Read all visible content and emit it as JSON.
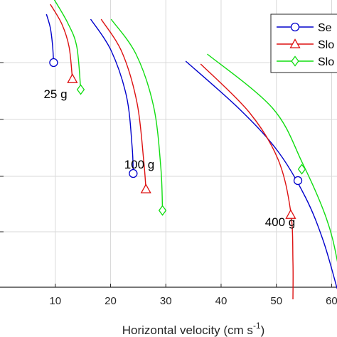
{
  "chart_data": {
    "type": "line",
    "xlabel": "Horizontal velocity (cm s",
    "xlabel_superscript": "-1",
    "xlabel_close": ")",
    "xlim": [
      0,
      62
    ],
    "x_ticks": [
      10,
      20,
      30,
      40,
      50,
      60
    ],
    "x_tick_labels": [
      "10",
      "20",
      "30",
      "40",
      "50",
      "60"
    ],
    "grid": true,
    "legend_position": "top-right",
    "series": [
      {
        "name": "Se",
        "color": "#0000cc",
        "marker": "circle"
      },
      {
        "name": "Slo",
        "color": "#dd1111",
        "marker": "triangle"
      },
      {
        "name": "Slo",
        "color": "#11dd11",
        "marker": "diamond"
      }
    ],
    "groups": [
      {
        "label": "25 g",
        "curves": [
          {
            "series": 0,
            "points": [
              [
                8.4,
                0.14
              ],
              [
                9.1,
                0.33
              ],
              [
                9.5,
                0.57
              ],
              [
                9.7,
                0.82
              ]
            ],
            "marker": [
              9.7,
              0.82
            ]
          },
          {
            "series": 1,
            "points": [
              [
                9.1,
                0.0
              ],
              [
                11.2,
                0.28
              ],
              [
                12.5,
                0.6
              ],
              [
                13.1,
                1.05
              ]
            ],
            "marker": [
              13.1,
              1.05
            ]
          },
          {
            "series": 2,
            "points": [
              [
                9.7,
                -0.08
              ],
              [
                12.3,
                0.27
              ],
              [
                13.9,
                0.6
              ],
              [
                14.6,
                1.2
              ]
            ],
            "marker": [
              14.6,
              1.2
            ]
          }
        ]
      },
      {
        "label": "100 g",
        "curves": [
          {
            "series": 0,
            "points": [
              [
                16.4,
                0.21
              ],
              [
                20.1,
                0.65
              ],
              [
                22.9,
                1.3
              ],
              [
                23.9,
                2.0
              ],
              [
                24.1,
                2.38
              ]
            ],
            "marker": [
              24.1,
              2.38
            ]
          },
          {
            "series": 1,
            "points": [
              [
                18.3,
                0.21
              ],
              [
                22.1,
                0.68
              ],
              [
                24.8,
                1.39
              ],
              [
                26.0,
                2.2
              ],
              [
                26.4,
                2.6
              ]
            ],
            "marker": [
              26.4,
              2.6
            ]
          },
          {
            "series": 2,
            "points": [
              [
                20.1,
                0.21
              ],
              [
                24.6,
                0.7
              ],
              [
                27.8,
                1.44
              ],
              [
                29.1,
                2.3
              ],
              [
                29.4,
                2.9
              ]
            ],
            "marker": [
              29.4,
              2.9
            ]
          }
        ]
      },
      {
        "label": "400 g",
        "curves": [
          {
            "series": 0,
            "points": [
              [
                33.6,
                0.8
              ],
              [
                43.4,
                1.48
              ],
              [
                50.3,
                2.07
              ],
              [
                55.3,
                2.72
              ],
              [
                58.5,
                3.33
              ],
              [
                61.0,
                4.0
              ]
            ],
            "marker": [
              53.9,
              2.48
            ]
          },
          {
            "series": 1,
            "points": [
              [
                36.3,
                0.84
              ],
              [
                45.1,
                1.52
              ],
              [
                50.3,
                2.18
              ],
              [
                52.6,
                2.92
              ],
              [
                53.0,
                3.62
              ],
              [
                53.0,
                4.15
              ]
            ],
            "marker": [
              52.6,
              2.96
            ]
          },
          {
            "series": 2,
            "points": [
              [
                37.5,
                0.7
              ],
              [
                49.3,
                1.46
              ],
              [
                54.7,
                2.23
              ],
              [
                59.0,
                3.0
              ],
              [
                61.0,
                3.6
              ],
              [
                62.0,
                4.2
              ]
            ],
            "marker": [
              54.6,
              2.32
            ]
          }
        ]
      }
    ]
  }
}
